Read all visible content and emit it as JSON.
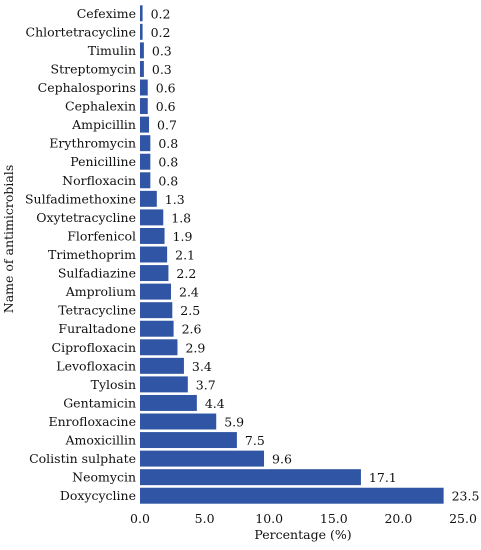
{
  "chart_data": {
    "type": "bar",
    "orientation": "horizontal",
    "xlabel": "Percentage (%)",
    "ylabel": "Name of antimicrobials",
    "xlim": [
      0,
      25
    ],
    "xticks": [
      "0.0",
      "5.0",
      "10.0",
      "15.0",
      "20.0",
      "25.0"
    ],
    "grid": false,
    "bar_color": "#2f55a4",
    "categories": [
      "Cefexime",
      "Chlortetracycline",
      "Timulin",
      "Streptomycin",
      "Cephalosporins",
      "Cephalexin",
      "Ampicillin",
      "Erythromycin",
      "Penicilline",
      "Norfloxacin",
      "Sulfadimethoxine",
      "Oxytetracycline",
      "Florfenicol",
      "Trimethoprim",
      "Sulfadiazine",
      "Amprolium",
      "Tetracycline",
      "Furaltadone",
      "Ciprofloxacin",
      "Levofloxacin",
      "Tylosin",
      "Gentamicin",
      "Enrofloxacine",
      "Amoxicillin",
      "Colistin sulphate",
      "Neomycin",
      "Doxycycline"
    ],
    "values": [
      0.2,
      0.2,
      0.3,
      0.3,
      0.6,
      0.6,
      0.7,
      0.8,
      0.8,
      0.8,
      1.3,
      1.8,
      1.9,
      2.1,
      2.2,
      2.4,
      2.5,
      2.6,
      2.9,
      3.4,
      3.7,
      4.4,
      5.9,
      7.5,
      9.6,
      17.1,
      23.5
    ],
    "value_labels": [
      "0.2",
      "0.2",
      "0.3",
      "0.3",
      "0.6",
      "0.6",
      "0.7",
      "0.8",
      "0.8",
      "0.8",
      "1.3",
      "1.8",
      "1.9",
      "2.1",
      "2.2",
      "2.4",
      "2.5",
      "2.6",
      "2.9",
      "3.4",
      "3.7",
      "4.4",
      "5.9",
      "7.5",
      "9.6",
      "17.1",
      "23.5"
    ]
  }
}
